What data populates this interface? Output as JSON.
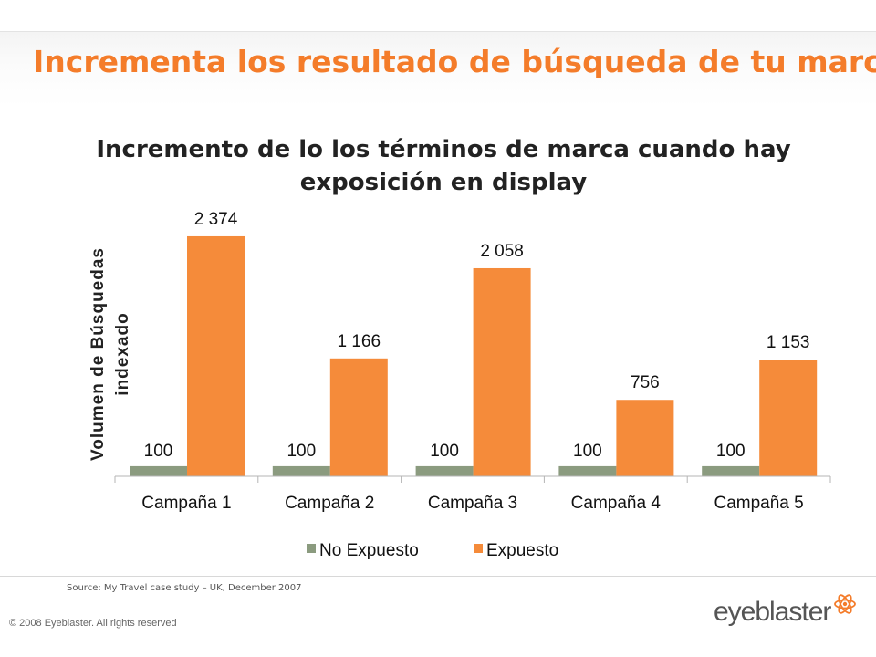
{
  "slide": {
    "title": "Incrementa los resultado de búsqueda de tu marca",
    "source": "Source: My Travel case study – UK, December 2007",
    "copyright": "© 2008 Eyeblaster. All rights reserved",
    "logo_text": "eyeblaster"
  },
  "chart_data": {
    "type": "bar",
    "title_lines": [
      "Incremento de lo los términos de marca cuando hay",
      "exposición en display"
    ],
    "ylabel_lines": [
      "Volumen de Búsquedas",
      "indexado"
    ],
    "xlabel": "",
    "categories": [
      "Campaña 1",
      "Campaña 2",
      "Campaña 3",
      "Campaña 4",
      "Campaña 5"
    ],
    "series": [
      {
        "name": "No Expuesto",
        "values": [
          100,
          100,
          100,
          100,
          100
        ],
        "labels": [
          "100",
          "100",
          "100",
          "100",
          "100"
        ],
        "color": "#8b9b7f"
      },
      {
        "name": "Expuesto",
        "values": [
          2374,
          1166,
          2058,
          756,
          1153
        ],
        "labels": [
          "2 374",
          "1 166",
          "2 058",
          "756",
          "1 153"
        ],
        "color": "#f58b3a"
      }
    ],
    "ylim": [
      0,
      2500
    ],
    "grid": false,
    "legend": "bottom",
    "y_axis_ticks_visible": false
  },
  "colors": {
    "title": "#f47c2a",
    "accent": "#f58b3a",
    "muted": "#8b9b7f"
  }
}
